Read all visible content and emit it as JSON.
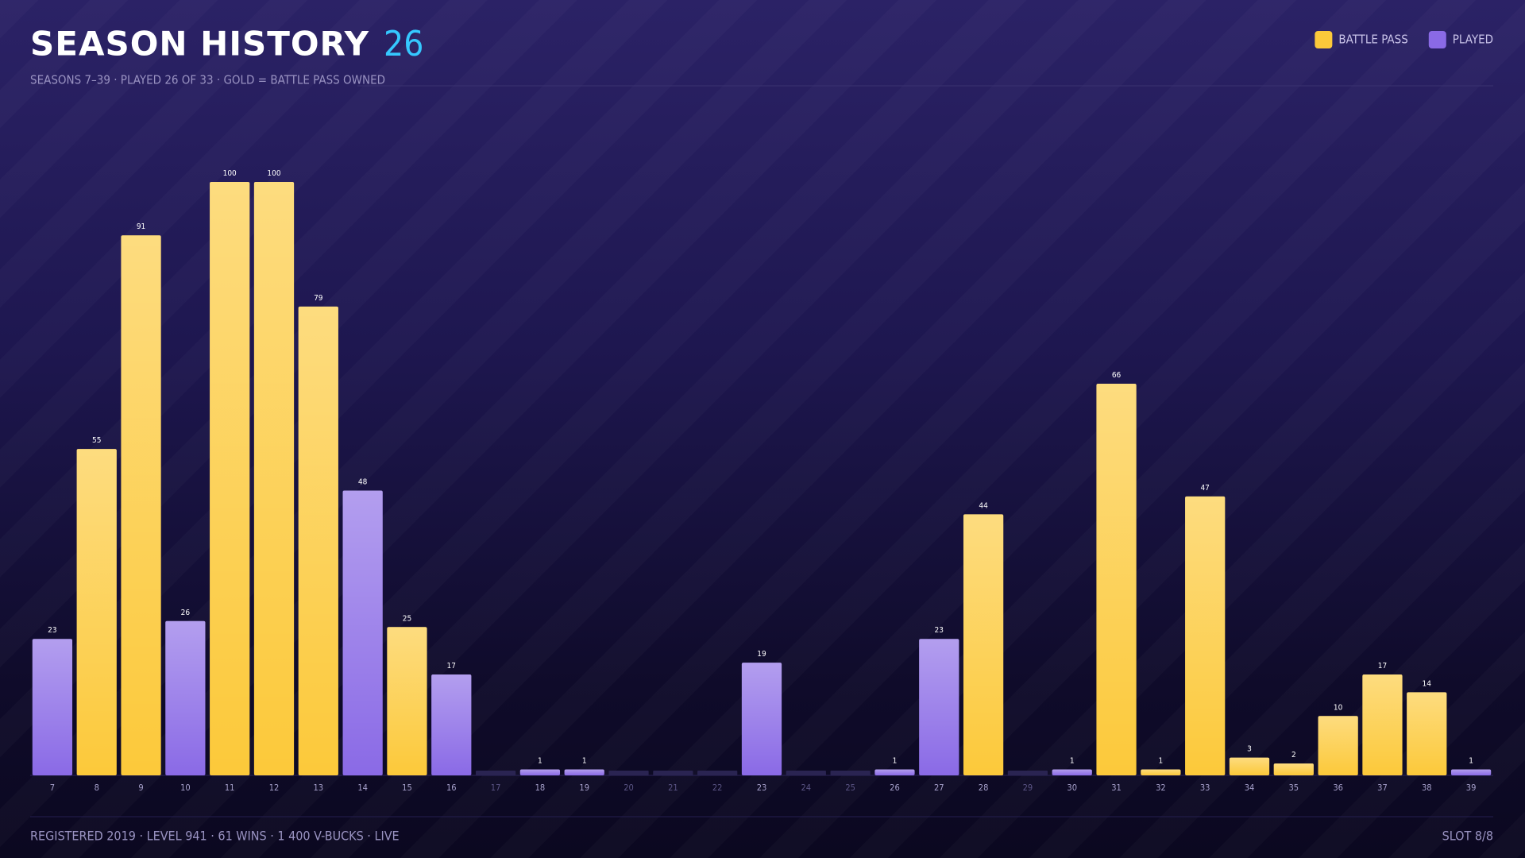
{
  "chart_data": {
    "type": "bar",
    "title": "SEASON HISTORY",
    "title_count": 26,
    "subtitle": "SEASONS 7–39 · PLAYED 26 OF 33 · GOLD = BATTLE PASS OWNED",
    "categories": [
      "7",
      "8",
      "9",
      "10",
      "11",
      "12",
      "13",
      "14",
      "15",
      "16",
      "17",
      "18",
      "19",
      "20",
      "21",
      "22",
      "23",
      "24",
      "25",
      "26",
      "27",
      "28",
      "29",
      "30",
      "31",
      "32",
      "33",
      "34",
      "35",
      "36",
      "37",
      "38",
      "39"
    ],
    "series": [
      {
        "name": "BATTLE PASS",
        "color": "#fcc93a",
        "values": [
          null,
          55,
          91,
          null,
          100,
          100,
          79,
          null,
          25,
          null,
          null,
          null,
          null,
          null,
          null,
          null,
          null,
          null,
          null,
          null,
          null,
          44,
          null,
          null,
          66,
          1,
          47,
          3,
          2,
          10,
          17,
          14,
          null
        ]
      },
      {
        "name": "PLAYED",
        "color": "#8a6ae6",
        "values": [
          23,
          null,
          null,
          26,
          null,
          null,
          null,
          48,
          null,
          17,
          null,
          1,
          1,
          null,
          null,
          null,
          19,
          null,
          null,
          1,
          23,
          null,
          null,
          1,
          null,
          null,
          null,
          null,
          null,
          null,
          null,
          null,
          1
        ]
      }
    ],
    "ylim": [
      0,
      100
    ],
    "footer_left": "REGISTERED 2019 · LEVEL 941 · 61 WINS · 1 400 V-BUCKS · LIVE",
    "footer_right": "SLOT 8/8"
  }
}
